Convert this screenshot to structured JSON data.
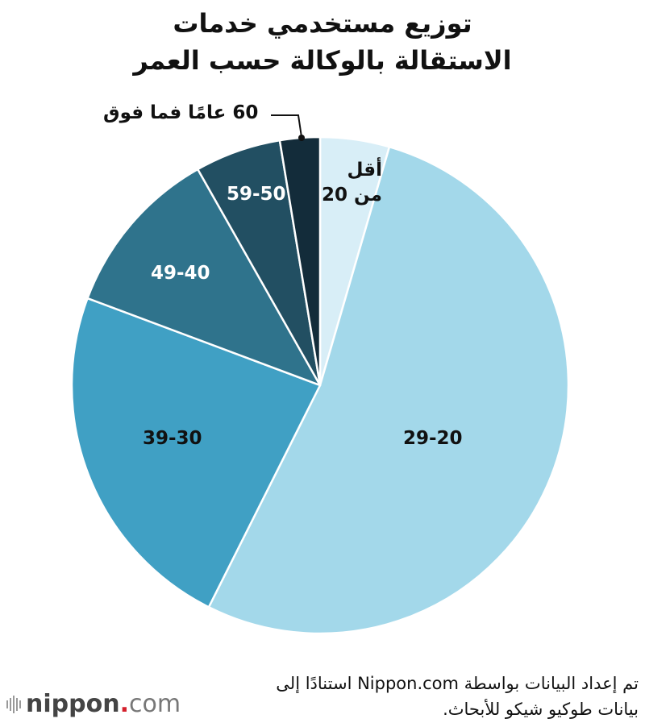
{
  "title": {
    "line1": "توزيع مستخدمي خدمات",
    "line2": "الاستقالة بالوكالة حسب العمر"
  },
  "chart_data": {
    "type": "pie",
    "title": "توزيع مستخدمي خدمات الاستقالة بالوكالة حسب العمر",
    "categories": [
      "أقل من 20",
      "29-20",
      "39-30",
      "49-40",
      "59-50",
      "60 عامًا فما فوق"
    ],
    "values": [
      4.5,
      52.9,
      23.3,
      11.1,
      5.6,
      2.6
    ],
    "unit": "%",
    "start_angle_deg": 0,
    "direction": "clockwise",
    "colors": [
      "#d8eef7",
      "#a3d8ea",
      "#40a0c4",
      "#2f738c",
      "#224f62",
      "#132c3a"
    ],
    "legend": "none (direct labels)"
  },
  "labels": {
    "under20_line1": "أقل",
    "under20_line2": "من 20",
    "age20_29": "29-20",
    "age30_39": "39-30",
    "age40_49": "49-40",
    "age50_59": "59-50",
    "age60_plus": "60 عامًا فما فوق"
  },
  "source": {
    "line1": "تم إعداد البيانات بواسطة Nippon.com استنادًا إلى",
    "line2": "بيانات طوكيو شيكو للأبحاث."
  },
  "logo": {
    "name": "nippon",
    "dot": ".",
    "suffix": "com"
  }
}
